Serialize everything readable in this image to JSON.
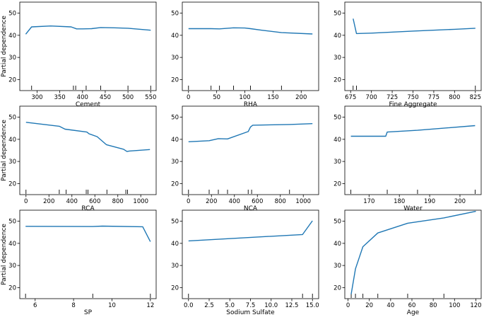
{
  "chart_data": [
    {
      "type": "line",
      "xlabel": "Cement",
      "ylabel": "Partial dependence",
      "ylim": [
        15,
        55
      ],
      "xlim": [
        262,
        562
      ],
      "xticks": [
        300,
        350,
        400,
        450,
        500,
        550
      ],
      "yticks": [
        20,
        30,
        40,
        50
      ],
      "x": [
        275,
        288,
        330,
        375,
        387,
        400,
        420,
        440,
        470,
        500,
        550
      ],
      "y": [
        40.5,
        43.8,
        44.2,
        43.8,
        42.9,
        42.9,
        43.0,
        43.5,
        43.4,
        43.2,
        42.3
      ],
      "deciles": [
        288,
        380,
        385,
        408,
        440,
        500,
        550
      ],
      "color": "#1f77b4"
    },
    {
      "type": "line",
      "xlabel": "RHA",
      "ylabel": "",
      "ylim": [
        15,
        55
      ],
      "xlim": [
        -11,
        231
      ],
      "xticks": [
        0,
        50,
        100,
        150,
        200
      ],
      "yticks": [
        20,
        30,
        40,
        50
      ],
      "x": [
        0,
        40,
        55,
        80,
        100,
        110,
        130,
        165,
        220
      ],
      "y": [
        43.0,
        43.0,
        42.9,
        43.4,
        43.3,
        43.0,
        42.3,
        41.2,
        40.6
      ],
      "deciles": [
        0,
        40,
        55,
        80,
        110,
        165
      ],
      "color": "#1f77b4"
    },
    {
      "type": "line",
      "xlabel": "Fine Aggregate",
      "ylabel": "",
      "ylim": [
        15,
        55
      ],
      "xlim": [
        668,
        832
      ],
      "xticks": [
        675,
        700,
        725,
        750,
        775,
        800,
        825
      ],
      "yticks": [
        20,
        30,
        40,
        50
      ],
      "x": [
        678,
        682,
        700,
        750,
        800,
        825
      ],
      "y": [
        47.5,
        40.8,
        41.0,
        41.9,
        42.7,
        43.2
      ],
      "deciles": [
        678,
        682,
        825
      ],
      "color": "#1f77b4"
    },
    {
      "type": "line",
      "xlabel": "RCA",
      "ylabel": "Partial dependence",
      "ylim": [
        15,
        55
      ],
      "xlim": [
        -54,
        1134
      ],
      "xticks": [
        0,
        200,
        400,
        600,
        800,
        1000
      ],
      "yticks": [
        20,
        30,
        40,
        50
      ],
      "x": [
        0,
        290,
        340,
        530,
        550,
        620,
        700,
        850,
        880,
        900,
        1080
      ],
      "y": [
        47.7,
        45.9,
        44.6,
        43.3,
        42.5,
        41.2,
        37.6,
        35.5,
        34.5,
        34.7,
        35.4
      ],
      "deciles": [
        0,
        290,
        350,
        525,
        540,
        705,
        870,
        885
      ],
      "color": "#1f77b4"
    },
    {
      "type": "line",
      "xlabel": "NCA",
      "ylabel": "",
      "ylim": [
        15,
        55
      ],
      "xlim": [
        -54,
        1134
      ],
      "xticks": [
        0,
        200,
        400,
        600,
        800,
        1000
      ],
      "yticks": [
        20,
        30,
        40,
        50
      ],
      "x": [
        0,
        180,
        260,
        340,
        520,
        540,
        560,
        880,
        1080
      ],
      "y": [
        38.9,
        39.4,
        40.3,
        40.2,
        43.5,
        45.6,
        46.4,
        46.7,
        47.1
      ],
      "deciles": [
        0,
        180,
        260,
        340,
        520,
        550,
        880
      ],
      "color": "#1f77b4"
    },
    {
      "type": "line",
      "xlabel": "Water",
      "ylabel": "",
      "ylim": [
        15,
        55
      ],
      "xlim": [
        162,
        207
      ],
      "xticks": [
        170,
        180,
        190,
        200
      ],
      "yticks": [
        20,
        30,
        40,
        50
      ],
      "x": [
        164,
        175.5,
        176,
        186,
        205
      ],
      "y": [
        41.4,
        41.4,
        43.3,
        44.1,
        46.2
      ],
      "deciles": [
        164,
        176,
        186,
        205
      ],
      "color": "#1f77b4"
    },
    {
      "type": "line",
      "xlabel": "SP",
      "ylabel": "Partial dependence",
      "ylim": [
        15,
        55
      ],
      "xlim": [
        5.2,
        12.3
      ],
      "xticks": [
        6,
        8,
        10,
        12
      ],
      "yticks": [
        20,
        30,
        40,
        50
      ],
      "x": [
        5.5,
        9.0,
        9.5,
        11.6,
        12.0
      ],
      "y": [
        47.7,
        47.6,
        47.8,
        47.5,
        40.8
      ],
      "deciles": [
        5.5,
        9.0,
        12.0
      ],
      "color": "#1f77b4"
    },
    {
      "type": "line",
      "xlabel": "Sodium Sulfate",
      "ylabel": "",
      "ylim": [
        15,
        55
      ],
      "xlim": [
        -0.75,
        15.75
      ],
      "xticks": [
        0.0,
        2.5,
        5.0,
        7.5,
        10.0,
        12.5,
        15.0
      ],
      "xtick_labels": [
        "0.0",
        "2.5",
        "5.0",
        "7.5",
        "10.0",
        "12.5",
        "15.0"
      ],
      "yticks": [
        20,
        30,
        40,
        50
      ],
      "x": [
        0,
        13.8,
        15
      ],
      "y": [
        41.1,
        44.0,
        50.2
      ],
      "deciles": [
        0,
        13.8,
        15
      ],
      "color": "#1f77b4"
    },
    {
      "type": "line",
      "xlabel": "Age",
      "ylabel": "",
      "ylim": [
        15,
        55
      ],
      "xlim": [
        -3,
        125
      ],
      "xticks": [
        0,
        20,
        40,
        60,
        80,
        100,
        120
      ],
      "yticks": [
        20,
        30,
        40,
        50
      ],
      "x": [
        3,
        7,
        14,
        28,
        56,
        90,
        120
      ],
      "y": [
        17.0,
        28.5,
        38.5,
        44.7,
        49.1,
        51.5,
        54.5
      ],
      "deciles": [
        3,
        7,
        14,
        28,
        56,
        90
      ],
      "color": "#1f77b4"
    }
  ]
}
